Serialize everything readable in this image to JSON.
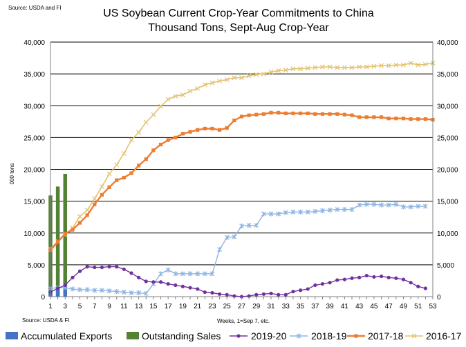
{
  "chart_data": {
    "type": "bar+line",
    "title": "US Soybean Current Crop-Year Commitments to China",
    "subtitle": "Thousand Tons, Sept-Aug Crop-Year",
    "source_top": "Source: USDA and  FI",
    "source_bottom": "Source: USDA & FI",
    "xlabel": "Weeks, 1=Sep 7, etc.",
    "ylabel": "000 tons",
    "ylim": [
      0,
      40000
    ],
    "y_ticks": [
      "0",
      "5,000",
      "10,000",
      "15,000",
      "20,000",
      "25,000",
      "30,000",
      "35,000",
      "40,000"
    ],
    "y_tick_values": [
      0,
      5000,
      10000,
      15000,
      20000,
      25000,
      30000,
      35000,
      40000
    ],
    "x_ticks": [
      "1",
      "3",
      "5",
      "7",
      "9",
      "11",
      "13",
      "15",
      "17",
      "19",
      "21",
      "23",
      "25",
      "27",
      "29",
      "31",
      "33",
      "35",
      "37",
      "39",
      "41",
      "43",
      "45",
      "47",
      "49",
      "51",
      "53"
    ],
    "x_range": [
      1,
      53
    ],
    "grid": "horizontal",
    "legend_position": "bottom",
    "colors": {
      "accumulated_exports": "#4472C4",
      "outstanding_sales": "#548235",
      "s2019_20": "#7030A0",
      "s2018_19": "#8EB4E3",
      "s2017_18": "#ED7D31",
      "s2016_17": "#E3C26F"
    },
    "bars": {
      "weeks": [
        1,
        2,
        3
      ],
      "accumulated_exports": [
        1000,
        1600,
        2100
      ],
      "outstanding_sales": [
        15900,
        17300,
        19300
      ]
    },
    "series": [
      {
        "name": "2019-20",
        "marker": "circle",
        "color": "#7030A0",
        "start_week": 1,
        "values": [
          700,
          1300,
          1800,
          3000,
          4000,
          4700,
          4600,
          4600,
          4700,
          4700,
          4300,
          3700,
          3000,
          2400,
          2300,
          2300,
          2000,
          1800,
          1600,
          1400,
          1200,
          700,
          600,
          400,
          300,
          100,
          0,
          100,
          300,
          400,
          500,
          300,
          300,
          800,
          1000,
          1200,
          1800,
          2000,
          2200,
          2600,
          2700,
          2900,
          3000,
          3300,
          3100,
          3200,
          3000,
          2900,
          2700,
          2200,
          1600,
          1300
        ]
      },
      {
        "name": "2018-19",
        "marker": "star",
        "color": "#8EB4E3",
        "start_week": 1,
        "values": [
          1300,
          1400,
          1400,
          1200,
          1100,
          1100,
          1000,
          1000,
          900,
          800,
          700,
          600,
          600,
          500,
          2000,
          3600,
          4200,
          3600,
          3600,
          3600,
          3600,
          3600,
          3600,
          7400,
          9300,
          9400,
          11100,
          11200,
          11200,
          13000,
          13000,
          13000,
          13200,
          13300,
          13300,
          13300,
          13400,
          13500,
          13600,
          13700,
          13700,
          13700,
          14400,
          14500,
          14500,
          14400,
          14400,
          14500,
          14100,
          14100,
          14200,
          14200
        ]
      },
      {
        "name": "2017-18",
        "marker": "square",
        "color": "#ED7D31",
        "start_week": 1,
        "values": [
          7300,
          8600,
          9900,
          10500,
          11600,
          12800,
          14500,
          16000,
          17200,
          18300,
          18700,
          19400,
          20600,
          21600,
          23000,
          23900,
          24600,
          25000,
          25600,
          25900,
          26200,
          26400,
          26400,
          26200,
          26500,
          27700,
          28300,
          28500,
          28600,
          28700,
          28900,
          28900,
          28800,
          28800,
          28800,
          28800,
          28700,
          28700,
          28700,
          28700,
          28600,
          28500,
          28200,
          28200,
          28200,
          28200,
          28000,
          28000,
          28000,
          27900,
          27900,
          27900,
          27800
        ]
      },
      {
        "name": "2016-17",
        "marker": "x",
        "color": "#E3C26F",
        "start_week": 1,
        "values": [
          7500,
          8700,
          9700,
          10800,
          12600,
          13600,
          15400,
          17300,
          19300,
          20700,
          22500,
          24600,
          25800,
          27400,
          28600,
          29900,
          31000,
          31500,
          31700,
          32300,
          32700,
          33300,
          33600,
          33900,
          34100,
          34400,
          34400,
          34700,
          34900,
          35000,
          35300,
          35500,
          35600,
          35800,
          35800,
          35900,
          36000,
          36100,
          36100,
          36000,
          36000,
          36000,
          36100,
          36100,
          36200,
          36300,
          36300,
          36400,
          36400,
          36700,
          36400,
          36500,
          36700
        ]
      }
    ],
    "legend": [
      "Accumulated Exports",
      "Outstanding Sales",
      "2019-20",
      "2018-19",
      "2017-18",
      "2016-17"
    ]
  }
}
